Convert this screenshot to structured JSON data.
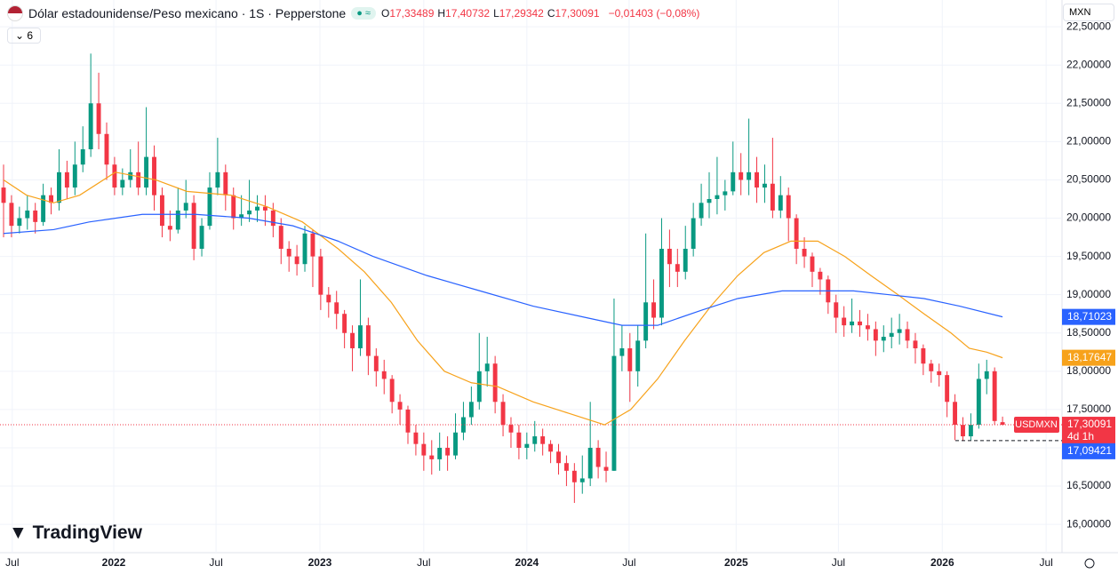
{
  "header": {
    "title": "Dólar estadounidense/Peso mexicano · 1S · Pepperstone",
    "ohlc": [
      {
        "key": "O",
        "value": "17,33489"
      },
      {
        "key": "H",
        "value": "17,40732"
      },
      {
        "key": "L",
        "value": "17,29342"
      },
      {
        "key": "C",
        "value": "17,30091"
      }
    ],
    "change": "−0,01403 (−0,08%)",
    "indicators": "6",
    "currency": "MXN",
    "logo": "TradingView"
  },
  "chart_data": {
    "type": "candlestick",
    "xlim": [
      -0.45,
      133.5
    ],
    "ylim": [
      15.63,
      22.85
    ],
    "grid": true,
    "xticks": [
      {
        "value": 1.1,
        "label": "Jul"
      },
      {
        "value": 13.9,
        "label": "2022"
      },
      {
        "value": 26.8,
        "label": "Jul"
      },
      {
        "value": 39.9,
        "label": "2023"
      },
      {
        "value": 53,
        "label": "Jul"
      },
      {
        "value": 66,
        "label": "2024"
      },
      {
        "value": 78.9,
        "label": "Jul"
      },
      {
        "value": 92.4,
        "label": "2025"
      },
      {
        "value": 105.3,
        "label": "Jul"
      },
      {
        "value": 118.4,
        "label": "2026"
      },
      {
        "value": 131.5,
        "label": "Jul"
      }
    ],
    "yticks": [
      {
        "value": 16,
        "label": "16,00000"
      },
      {
        "value": 16.5,
        "label": "16,50000"
      },
      {
        "value": 17,
        "label": "17,00000"
      },
      {
        "value": 17.5,
        "label": "17,50000"
      },
      {
        "value": 18,
        "label": "18,00000"
      },
      {
        "value": 18.5,
        "label": "18,50000"
      },
      {
        "value": 19,
        "label": "19,00000"
      },
      {
        "value": 19.5,
        "label": "19,50000"
      },
      {
        "value": 20,
        "label": "20,00000"
      },
      {
        "value": 20.5,
        "label": "20,50000"
      },
      {
        "value": 21,
        "label": "21,00000"
      },
      {
        "value": 21.5,
        "label": "21,50000"
      },
      {
        "value": 22,
        "label": "22,00000"
      },
      {
        "value": 22.5,
        "label": "22,50000"
      }
    ],
    "series": [
      {
        "name": "USDMXN",
        "up_color": "#089981",
        "down_color": "#f23645",
        "last_label": "17,30091",
        "countdown": "4d 1h",
        "open": [
          20.4,
          20.2,
          19.9,
          20.0,
          20.1,
          19.95,
          20.3,
          20.2,
          20.6,
          20.4,
          20.7,
          20.9,
          21.5,
          21.1,
          20.7,
          20.4,
          20.5,
          20.6,
          20.4,
          20.8,
          20.3,
          19.9,
          19.85,
          20.1,
          20.2,
          19.6,
          19.9,
          20.4,
          20.6,
          20.3,
          20.0,
          20.05,
          20.1,
          20.15,
          20.1,
          19.9,
          19.6,
          19.5,
          19.4,
          19.8,
          19.5,
          19.0,
          18.9,
          18.75,
          18.5,
          18.3,
          18.6,
          18.2,
          18.0,
          17.9,
          17.6,
          17.5,
          17.2,
          17.05,
          16.9,
          16.85,
          17.0,
          16.9,
          17.2,
          17.4,
          17.6,
          18.0,
          18.1,
          17.6,
          17.3,
          17.2,
          17.0,
          17.05,
          17.15,
          17.05,
          16.95,
          16.8,
          16.7,
          16.55,
          16.6,
          17.0,
          16.75,
          16.7,
          18.2,
          18.3,
          18.0,
          18.4,
          18.9,
          18.7,
          19.6,
          19.4,
          19.3,
          19.6,
          20.0,
          20.2,
          20.25,
          20.3,
          20.35,
          20.6,
          20.5,
          20.6,
          20.4,
          20.45,
          20.1,
          20.3,
          20.0,
          19.6,
          19.5,
          19.3,
          19.2,
          18.9,
          18.7,
          18.6,
          18.65,
          18.6,
          18.55,
          18.4,
          18.45,
          18.5,
          18.55,
          18.4,
          18.3,
          18.1,
          18.0,
          17.95,
          17.6,
          17.3,
          17.15,
          17.3,
          17.9,
          18.0,
          17.33489
        ],
        "high": [
          20.7,
          20.3,
          20.15,
          20.3,
          20.2,
          20.45,
          20.4,
          20.9,
          20.75,
          21.0,
          21.2,
          22.15,
          21.9,
          21.25,
          20.8,
          20.65,
          20.9,
          21.0,
          21.45,
          20.95,
          20.4,
          20.1,
          20.4,
          20.5,
          20.3,
          20.0,
          20.6,
          21.05,
          20.7,
          20.4,
          20.3,
          20.5,
          20.3,
          20.3,
          20.2,
          20.0,
          19.7,
          19.65,
          19.9,
          19.85,
          19.6,
          19.1,
          19.05,
          18.8,
          18.6,
          19.2,
          18.7,
          18.3,
          18.15,
          17.95,
          17.7,
          17.55,
          17.3,
          17.2,
          17.1,
          17.2,
          17.15,
          17.45,
          17.6,
          17.8,
          18.5,
          18.45,
          18.2,
          17.7,
          17.4,
          17.3,
          17.2,
          17.35,
          17.25,
          17.1,
          17.05,
          16.9,
          16.8,
          16.9,
          17.6,
          17.1,
          16.95,
          18.95,
          18.6,
          18.5,
          18.6,
          19.8,
          19.2,
          20.0,
          19.85,
          19.6,
          19.9,
          20.2,
          20.45,
          20.6,
          20.8,
          20.5,
          21.0,
          20.85,
          21.3,
          20.8,
          20.7,
          21.05,
          20.55,
          20.4,
          20.05,
          19.75,
          19.55,
          19.35,
          19.25,
          19.0,
          18.85,
          18.95,
          18.8,
          18.75,
          18.65,
          18.6,
          18.7,
          18.75,
          18.65,
          18.5,
          18.35,
          18.15,
          18.1,
          18.0,
          17.7,
          17.4,
          17.45,
          18.1,
          18.15,
          18.05,
          17.40732
        ],
        "low": [
          19.75,
          19.75,
          19.8,
          19.85,
          19.8,
          19.9,
          20.05,
          20.1,
          20.25,
          20.3,
          20.6,
          20.8,
          20.9,
          20.5,
          20.3,
          20.3,
          20.4,
          20.3,
          20.3,
          20.1,
          19.75,
          19.7,
          19.8,
          20.0,
          19.45,
          19.5,
          19.85,
          20.3,
          20.1,
          19.85,
          19.9,
          19.95,
          19.95,
          19.9,
          19.75,
          19.4,
          19.3,
          19.25,
          19.3,
          19.1,
          18.8,
          18.7,
          18.55,
          18.3,
          18.0,
          18.2,
          17.95,
          17.8,
          17.7,
          17.45,
          17.3,
          17.05,
          16.9,
          16.7,
          16.65,
          16.7,
          16.7,
          16.85,
          17.1,
          17.3,
          17.5,
          17.8,
          17.45,
          17.15,
          17.0,
          16.85,
          16.85,
          16.95,
          16.9,
          16.8,
          16.65,
          16.5,
          16.28,
          16.4,
          16.5,
          16.6,
          16.55,
          16.7,
          18.0,
          17.6,
          17.8,
          18.3,
          18.55,
          18.6,
          19.1,
          19.1,
          19.2,
          19.5,
          19.9,
          20.0,
          20.05,
          20.1,
          20.3,
          20.3,
          20.3,
          20.2,
          20.2,
          20.0,
          20.0,
          19.7,
          19.4,
          19.35,
          19.1,
          19.0,
          18.75,
          18.5,
          18.45,
          18.5,
          18.45,
          18.4,
          18.2,
          18.25,
          18.3,
          18.35,
          18.3,
          18.1,
          17.95,
          17.85,
          17.8,
          17.4,
          17.1,
          17.09421,
          17.1,
          17.25,
          17.7,
          17.3,
          17.29342
        ],
        "close": [
          20.2,
          19.9,
          20.0,
          20.1,
          19.95,
          20.3,
          20.2,
          20.6,
          20.4,
          20.7,
          20.9,
          21.5,
          21.1,
          20.7,
          20.4,
          20.5,
          20.6,
          20.4,
          20.8,
          20.3,
          19.9,
          19.85,
          20.1,
          20.2,
          19.6,
          19.9,
          20.4,
          20.6,
          20.3,
          20.0,
          20.05,
          20.1,
          20.15,
          20.1,
          19.9,
          19.6,
          19.5,
          19.4,
          19.8,
          19.5,
          19.0,
          18.9,
          18.75,
          18.5,
          18.3,
          18.6,
          18.2,
          18.0,
          17.9,
          17.6,
          17.5,
          17.2,
          17.05,
          16.9,
          16.85,
          17.0,
          16.9,
          17.2,
          17.4,
          17.6,
          18.0,
          18.1,
          17.6,
          17.3,
          17.2,
          17.0,
          17.05,
          17.15,
          17.05,
          16.95,
          16.8,
          16.7,
          16.55,
          16.6,
          17.0,
          16.75,
          16.7,
          18.2,
          18.3,
          18.0,
          18.4,
          18.9,
          18.7,
          19.6,
          19.4,
          19.3,
          19.6,
          20.0,
          20.2,
          20.25,
          20.3,
          20.35,
          20.6,
          20.5,
          20.6,
          20.4,
          20.45,
          20.1,
          20.3,
          20.0,
          19.6,
          19.5,
          19.3,
          19.2,
          18.9,
          18.7,
          18.6,
          18.65,
          18.6,
          18.55,
          18.4,
          18.45,
          18.5,
          18.55,
          18.4,
          18.3,
          18.1,
          18.0,
          17.95,
          17.6,
          17.3,
          17.15,
          17.3,
          17.9,
          18.0,
          17.35,
          17.30091
        ]
      }
    ],
    "low_marker": {
      "value": 17.09421,
      "label": "17,09421"
    },
    "lines": [
      {
        "color": "#f7a21b",
        "last_label": "18,17647",
        "x": [
          0,
          2.9,
          6.3,
          9.6,
          14.1,
          19.2,
          23.1,
          28.7,
          33.2,
          37.7,
          42.2,
          45.5,
          48.9,
          52.2,
          55.6,
          59,
          62.3,
          66.8,
          71.3,
          75.8,
          79.1,
          82.5,
          85.9,
          89.2,
          92.6,
          95.9,
          99.3,
          102.7,
          106.1,
          109.4,
          112.8,
          116.1,
          119.5,
          121.8,
          124,
          126
        ],
        "values": [
          20.5,
          20.3,
          20.2,
          20.3,
          20.6,
          20.5,
          20.35,
          20.3,
          20.15,
          19.95,
          19.6,
          19.3,
          18.9,
          18.4,
          18.0,
          17.85,
          17.8,
          17.6,
          17.45,
          17.3,
          17.5,
          17.9,
          18.4,
          18.85,
          19.25,
          19.55,
          19.7,
          19.7,
          19.5,
          19.25,
          19.0,
          18.75,
          18.5,
          18.3,
          18.25,
          18.17647
        ]
      },
      {
        "color": "#2962ff",
        "last_label": "18,71023",
        "x": [
          0,
          6.3,
          10.8,
          17.5,
          24.2,
          30.9,
          36.5,
          42.2,
          46.6,
          53.4,
          60.1,
          66.8,
          73.5,
          78,
          82.5,
          88.1,
          92.6,
          98.2,
          102.7,
          107.2,
          111.7,
          116.1,
          120.6,
          126
        ],
        "values": [
          19.8,
          19.85,
          19.95,
          20.05,
          20.05,
          20.0,
          19.9,
          19.7,
          19.5,
          19.25,
          19.05,
          18.85,
          18.7,
          18.6,
          18.6,
          18.8,
          18.95,
          19.05,
          19.05,
          19.05,
          19.0,
          18.95,
          18.85,
          18.71023
        ]
      }
    ]
  }
}
